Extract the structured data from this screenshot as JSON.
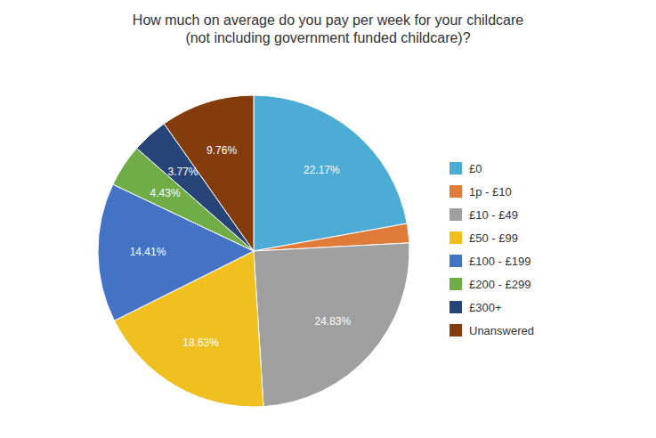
{
  "chart_data": {
    "type": "pie",
    "title": "How much on average do you pay per week for your childcare\n(not including government funded childcare)?",
    "categories": [
      "£0",
      "1p - £10",
      "£10 - £49",
      "£50 - £99",
      "£100 - £199",
      "£200 - £299",
      "£300+",
      "Unanswered"
    ],
    "values": [
      22.17,
      2.0,
      24.83,
      18.63,
      14.41,
      4.43,
      3.77,
      9.76
    ],
    "value_labels": [
      "22.17%",
      null,
      "24.83%",
      "18.63%",
      "14.41%",
      "4.43%",
      "3.77%",
      "9.76%"
    ],
    "colors": [
      "#4dacd6",
      "#e07b39",
      "#a0a0a0",
      "#f0c020",
      "#4472c4",
      "#70ad47",
      "#264478",
      "#843c0c"
    ],
    "data_labels": true,
    "legend": "right"
  }
}
